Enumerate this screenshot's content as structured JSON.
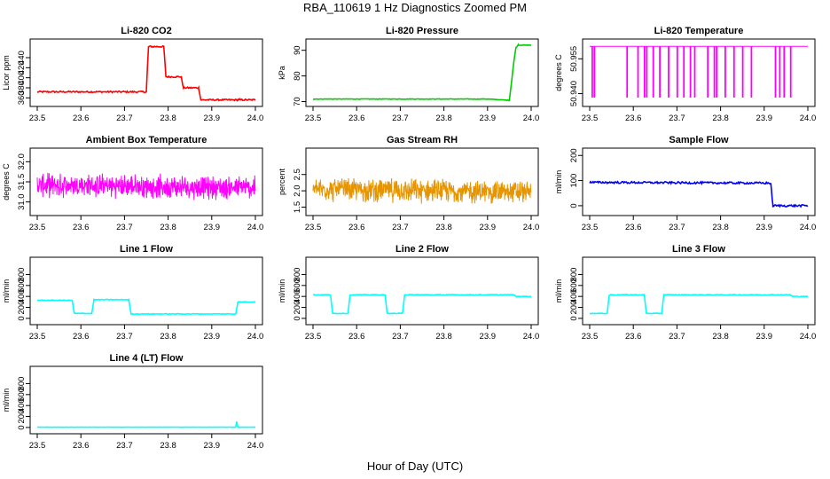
{
  "figure": {
    "title": "RBA_110619  1 Hz Diagnostics Zoomed PM",
    "xlabel": "Hour of Day (UTC)"
  },
  "chart_data": [
    {
      "id": "co2",
      "type": "line",
      "title": "Li-820 CO2",
      "ylabel": "Licor ppm",
      "color": "#ff0000",
      "xlim": [
        23.5,
        24.0
      ],
      "ylim": [
        350,
        470
      ],
      "xticks": [
        23.5,
        23.6,
        23.7,
        23.8,
        23.9,
        24.0
      ],
      "yticks": [
        360,
        380,
        400,
        420,
        440
      ],
      "style": "step",
      "noise": 1.5,
      "series": [
        {
          "name": "CO2",
          "x": [
            23.5,
            23.75,
            23.755,
            23.79,
            23.795,
            23.83,
            23.835,
            23.87,
            23.875,
            23.96,
            23.965,
            24.0
          ],
          "y": [
            372,
            372,
            462,
            462,
            402,
            402,
            380,
            380,
            356,
            356,
            356,
            356
          ]
        }
      ]
    },
    {
      "id": "pressure",
      "type": "line",
      "title": "Li-820 Pressure",
      "ylabel": "kPa",
      "color": "#00cc00",
      "xlim": [
        23.5,
        24.0
      ],
      "ylim": [
        69.5,
        93
      ],
      "xticks": [
        23.5,
        23.6,
        23.7,
        23.8,
        23.9,
        24.0
      ],
      "yticks": [
        70,
        80,
        90
      ],
      "style": "step",
      "noise": 0.1,
      "series": [
        {
          "name": "Pressure",
          "x": [
            23.5,
            23.9,
            23.95,
            23.96,
            23.965,
            23.97,
            24.0
          ],
          "y": [
            71,
            71,
            70.5,
            85,
            91,
            92,
            92
          ]
        }
      ]
    },
    {
      "id": "li820temp",
      "type": "line",
      "title": "Li-820 Temperature",
      "ylabel": "degrees C",
      "color": "#ff00ff",
      "xlim": [
        23.5,
        24.0
      ],
      "ylim": [
        50.936,
        50.962
      ],
      "xticks": [
        23.5,
        23.6,
        23.7,
        23.8,
        23.9,
        24.0
      ],
      "yticks": [
        50.94,
        50.955
      ],
      "style": "dropouts",
      "noise": 0,
      "series": [
        {
          "name": "Temperature",
          "x": [
            23.5,
            24.0
          ],
          "y": [
            50.9604,
            50.9604
          ]
        }
      ],
      "dropouts": {
        "low": 50.9385,
        "x": [
          23.505,
          23.51,
          23.585,
          23.61,
          23.625,
          23.63,
          23.645,
          23.66,
          23.68,
          23.7,
          23.715,
          23.73,
          23.74,
          23.77,
          23.785,
          23.79,
          23.81,
          23.83,
          23.85,
          23.87,
          23.925,
          23.935,
          23.945,
          23.96
        ]
      }
    },
    {
      "id": "ambbox",
      "type": "line",
      "title": "Ambient Box Temperature",
      "ylabel": "degrees C",
      "color": "#ff00ff",
      "xlim": [
        23.5,
        24.0
      ],
      "ylim": [
        30.75,
        32.25
      ],
      "xticks": [
        23.5,
        23.6,
        23.7,
        23.8,
        23.9,
        24.0
      ],
      "yticks": [
        31.0,
        31.5,
        32.0
      ],
      "style": "noisy",
      "noise": 0.28,
      "series": [
        {
          "name": "Ambient",
          "x": [
            23.5,
            24.0
          ],
          "y": [
            31.42,
            31.35
          ]
        }
      ]
    },
    {
      "id": "rh",
      "type": "line",
      "title": "Gas Stream RH",
      "ylabel": "percent",
      "color": "#e69500",
      "xlim": [
        23.5,
        24.0
      ],
      "ylim": [
        1.35,
        3.2
      ],
      "xticks": [
        23.5,
        23.6,
        23.7,
        23.8,
        23.9,
        24.0
      ],
      "yticks": [
        1.5,
        2.0,
        2.5
      ],
      "style": "noisy",
      "noise": 0.35,
      "series": [
        {
          "name": "RH",
          "x": [
            23.5,
            24.0
          ],
          "y": [
            2.05,
            1.95
          ]
        }
      ]
    },
    {
      "id": "sampleflow",
      "type": "line",
      "title": "Sample Flow",
      "ylabel": "ml/min",
      "color": "#0000ff",
      "xlim": [
        23.5,
        24.0
      ],
      "ylim": [
        -25,
        215
      ],
      "xticks": [
        23.5,
        23.6,
        23.7,
        23.8,
        23.9,
        24.0
      ],
      "yticks": [
        0,
        100,
        200
      ],
      "style": "step",
      "noise": 4,
      "series": [
        {
          "name": "Sample",
          "x": [
            23.5,
            23.915,
            23.92,
            24.0
          ],
          "y": [
            93,
            90,
            0,
            0
          ]
        }
      ]
    },
    {
      "id": "line1",
      "type": "line",
      "title": "Line 1 Flow",
      "ylabel": "ml/min",
      "color": "#00ffff",
      "xlim": [
        23.5,
        24.0
      ],
      "ylim": [
        -50,
        1050
      ],
      "xticks": [
        23.5,
        23.6,
        23.7,
        23.8,
        23.9,
        24.0
      ],
      "yticks": [
        0,
        200,
        400,
        600,
        800
      ],
      "style": "step",
      "noise": 6,
      "series": [
        {
          "name": "Line1",
          "x": [
            23.5,
            23.58,
            23.585,
            23.625,
            23.63,
            23.71,
            23.715,
            23.955,
            23.96,
            24.0
          ],
          "y": [
            330,
            330,
            90,
            90,
            340,
            340,
            80,
            80,
            300,
            300
          ]
        }
      ]
    },
    {
      "id": "line2",
      "type": "line",
      "title": "Line 2 Flow",
      "ylabel": "ml/min",
      "color": "#00ffff",
      "xlim": [
        23.5,
        24.0
      ],
      "ylim": [
        -50,
        1050
      ],
      "xticks": [
        23.5,
        23.6,
        23.7,
        23.8,
        23.9,
        24.0
      ],
      "yticks": [
        0,
        200,
        400,
        600,
        800
      ],
      "style": "step",
      "noise": 5,
      "series": [
        {
          "name": "Line2",
          "x": [
            23.5,
            23.54,
            23.545,
            23.58,
            23.585,
            23.665,
            23.67,
            23.705,
            23.71,
            23.96,
            23.965,
            24.0
          ],
          "y": [
            430,
            430,
            90,
            90,
            430,
            430,
            90,
            90,
            430,
            430,
            400,
            400
          ]
        }
      ]
    },
    {
      "id": "line3",
      "type": "line",
      "title": "Line 3 Flow",
      "ylabel": "ml/min",
      "color": "#00ffff",
      "xlim": [
        23.5,
        24.0
      ],
      "ylim": [
        -50,
        1050
      ],
      "xticks": [
        23.5,
        23.6,
        23.7,
        23.8,
        23.9,
        24.0
      ],
      "yticks": [
        0,
        200,
        400,
        600,
        800
      ],
      "style": "step",
      "noise": 5,
      "series": [
        {
          "name": "Line3",
          "x": [
            23.5,
            23.54,
            23.545,
            23.625,
            23.63,
            23.665,
            23.67,
            23.96,
            23.965,
            24.0
          ],
          "y": [
            90,
            90,
            430,
            430,
            90,
            90,
            430,
            430,
            400,
            400
          ]
        }
      ]
    },
    {
      "id": "line4",
      "type": "line",
      "title": "Line 4 (LT) Flow",
      "ylabel": "ml/min",
      "color": "#00ffff",
      "xlim": [
        23.5,
        24.0
      ],
      "ylim": [
        -50,
        1050
      ],
      "xticks": [
        23.5,
        23.6,
        23.7,
        23.8,
        23.9,
        24.0
      ],
      "yticks": [
        0,
        200,
        400,
        600,
        800
      ],
      "style": "step",
      "noise": 2,
      "series": [
        {
          "name": "Line4",
          "x": [
            23.5,
            23.955,
            23.957,
            23.96,
            24.0
          ],
          "y": [
            5,
            5,
            110,
            5,
            5
          ]
        }
      ]
    }
  ]
}
